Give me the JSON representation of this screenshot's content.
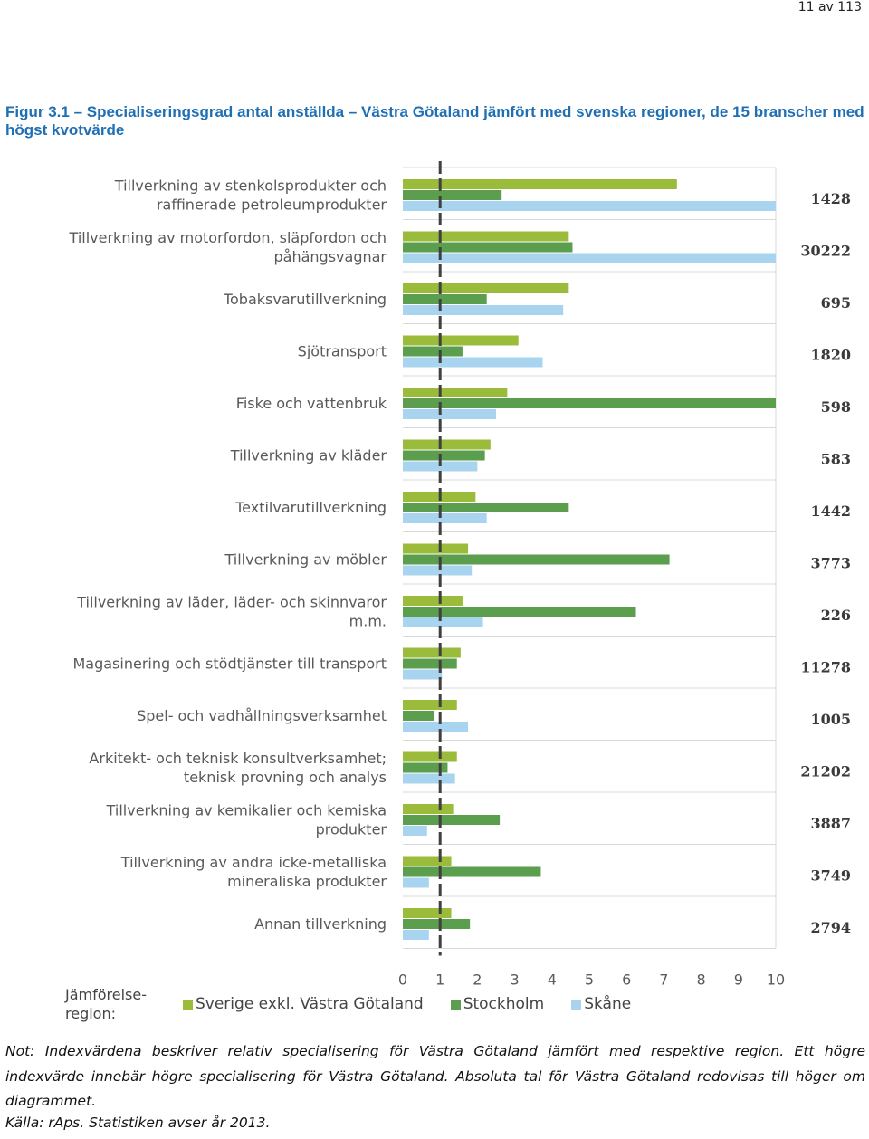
{
  "page": {
    "number": "11 av 113"
  },
  "figure": {
    "title": "Figur 3.1 – Specialiseringsgrad antal anställda – Västra Götaland jämfört med svenska regioner, de 15 branscher med högst kvotvärde"
  },
  "chart_data": {
    "type": "bar",
    "orientation": "horizontal",
    "title": "Figur 3.1 – Specialiseringsgrad antal anställda – Västra Götaland jämfört med svenska regioner, de 15 branscher med högst kvotvärde",
    "xlim": [
      0,
      10
    ],
    "x_ticks": [
      "0",
      "1",
      "2",
      "3",
      "4",
      "5",
      "6",
      "7",
      "8",
      "9",
      "10"
    ],
    "reference_line": 1,
    "categories": [
      [
        "Tillverkning av stenkolsprodukter och",
        "raffinerade petroleumprodukter"
      ],
      [
        "Tillverkning av motorfordon, släpfordon och",
        "påhängsvagnar"
      ],
      [
        "Tobaksvarutillverkning"
      ],
      [
        "Sjötransport"
      ],
      [
        "Fiske och vattenbruk"
      ],
      [
        "Tillverkning av kläder"
      ],
      [
        "Textilvarutillverkning"
      ],
      [
        "Tillverkning av möbler"
      ],
      [
        "Tillverkning av läder, läder- och skinnvaror",
        "m.m."
      ],
      [
        "Magasinering och stödtjänster till transport"
      ],
      [
        "Spel- och vadhållningsverksamhet"
      ],
      [
        "Arkitekt- och teknisk konsultverksamhet;",
        "teknisk provning och analys"
      ],
      [
        "Tillverkning av kemikalier och kemiska",
        "produkter"
      ],
      [
        "Tillverkning av andra icke-metalliska",
        "mineraliska produkter"
      ],
      [
        "Annan tillverkning"
      ]
    ],
    "absolute_values": [
      "1428",
      "30222",
      "695",
      "1820",
      "598",
      "583",
      "1442",
      "3773",
      "226",
      "11278",
      "1005",
      "21202",
      "3887",
      "3749",
      "2794"
    ],
    "series": [
      {
        "name": "Sverige exkl. Västra Götaland",
        "color": "#9bbb3a",
        "values": [
          7.35,
          4.45,
          4.45,
          3.1,
          2.8,
          2.35,
          1.95,
          1.75,
          1.6,
          1.55,
          1.45,
          1.45,
          1.35,
          1.3,
          1.3
        ]
      },
      {
        "name": "Stockholm",
        "color": "#5a9e4e",
        "values": [
          2.65,
          4.55,
          2.25,
          1.6,
          10.0,
          2.2,
          4.45,
          7.15,
          6.25,
          1.45,
          0.85,
          1.2,
          2.6,
          3.7,
          1.8
        ]
      },
      {
        "name": "Skåne",
        "color": "#a9d4ef",
        "values": [
          10.0,
          10.0,
          4.3,
          3.75,
          2.5,
          2.0,
          2.25,
          1.85,
          2.15,
          1.05,
          1.75,
          1.4,
          0.65,
          0.7,
          0.7
        ]
      }
    ],
    "legend": {
      "title": [
        "Jämförelse-",
        "region:"
      ],
      "position": "bottom"
    }
  },
  "notes": {
    "text": "Not: Indexvärdena beskriver relativ specialisering för Västra Götaland jämfört med respektive region. Ett högre indexvärde innebär högre specialisering för Västra Götaland. Absoluta tal för Västra Götaland redovisas till höger om diagrammet.",
    "source": "Källa: rAps. Statistiken avser år 2013."
  }
}
